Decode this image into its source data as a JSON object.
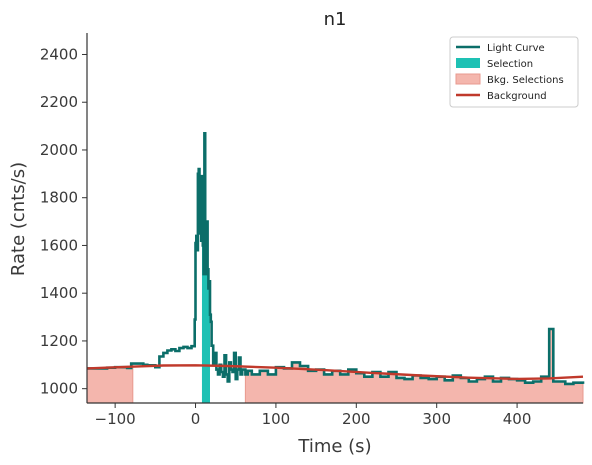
{
  "chart_data": {
    "type": "line",
    "title": "n1",
    "xlabel": "Time (s)",
    "ylabel": "Rate (cnts/s)",
    "xlim": [
      -135,
      482
    ],
    "ylim": [
      940,
      2490
    ],
    "x_ticks": [
      -100,
      0,
      100,
      200,
      300,
      400
    ],
    "y_ticks": [
      1000,
      1200,
      1400,
      1600,
      1800,
      2000,
      2200,
      2400
    ],
    "grid": false,
    "legend_position": "top-right",
    "legend": [
      {
        "label": "Light Curve",
        "kind": "line",
        "color": "#0b6e69"
      },
      {
        "label": "Selection",
        "kind": "patch",
        "color": "#1ec1b4"
      },
      {
        "label": "Bkg. Selections",
        "kind": "patch",
        "color": "#f4b6ad"
      },
      {
        "label": "Background",
        "kind": "line",
        "color": "#c0392b"
      }
    ],
    "selection": {
      "x": [
        8,
        18
      ]
    },
    "bkg_selections": [
      {
        "x": [
          -135,
          -78
        ]
      },
      {
        "x": [
          62,
          482
        ]
      }
    ],
    "background_model": {
      "name": "Background",
      "x": [
        -135,
        -80,
        -40,
        0,
        40,
        100,
        160,
        220,
        280,
        340,
        400,
        440,
        482
      ],
      "y": [
        1085,
        1092,
        1097,
        1098,
        1095,
        1088,
        1078,
        1066,
        1055,
        1046,
        1041,
        1043,
        1050
      ]
    },
    "series": [
      {
        "name": "Light Curve",
        "step": "post",
        "x": [
          -135,
          -110,
          -100,
          -85,
          -80,
          -65,
          -60,
          -50,
          -45,
          -40,
          -35,
          -30,
          -25,
          -20,
          -15,
          -10,
          -5,
          -1,
          0,
          1,
          2,
          3,
          4,
          5,
          6,
          7,
          8,
          9,
          10,
          11,
          12,
          13,
          14,
          15,
          16,
          17,
          18,
          19,
          20,
          22,
          24,
          26,
          28,
          30,
          32,
          34,
          36,
          38,
          40,
          42,
          44,
          46,
          48,
          50,
          52,
          54,
          56,
          58,
          62,
          65,
          70,
          80,
          90,
          100,
          110,
          120,
          130,
          140,
          150,
          160,
          170,
          180,
          190,
          200,
          210,
          220,
          230,
          240,
          250,
          260,
          270,
          280,
          290,
          300,
          310,
          320,
          330,
          340,
          350,
          360,
          370,
          380,
          390,
          400,
          410,
          420,
          430,
          440,
          445,
          460,
          470,
          482
        ],
        "y": [
          1085,
          1088,
          1090,
          1087,
          1105,
          1100,
          1098,
          1090,
          1135,
          1150,
          1160,
          1165,
          1158,
          1170,
          1175,
          1170,
          1178,
          1290,
          1610,
          1640,
          1580,
          1900,
          1920,
          1850,
          1650,
          1620,
          1890,
          1600,
          1480,
          2070,
          1510,
          1480,
          1700,
          1500,
          1420,
          1450,
          1310,
          1280,
          1180,
          1100,
          1150,
          1080,
          1060,
          1100,
          1070,
          1050,
          1140,
          1060,
          1030,
          1110,
          1080,
          1070,
          1150,
          1040,
          1080,
          1130,
          1060,
          1080,
          1060,
          1075,
          1060,
          1075,
          1060,
          1090,
          1085,
          1110,
          1095,
          1075,
          1080,
          1060,
          1075,
          1060,
          1080,
          1065,
          1050,
          1070,
          1050,
          1070,
          1045,
          1040,
          1055,
          1045,
          1040,
          1050,
          1035,
          1055,
          1045,
          1030,
          1040,
          1050,
          1030,
          1045,
          1040,
          1035,
          1025,
          1030,
          1050,
          1250,
          1030,
          1020,
          1025,
          1020
        ]
      }
    ]
  }
}
